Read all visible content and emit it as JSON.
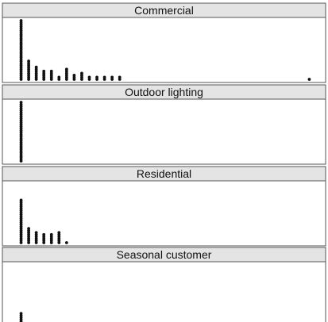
{
  "chart_data": {
    "type": "dotplot",
    "panels": [
      {
        "title": "Commercial",
        "columns": [
          {
            "x": 1,
            "count": 30
          },
          {
            "x": 2,
            "count": 10
          },
          {
            "x": 3,
            "count": 7
          },
          {
            "x": 4,
            "count": 5
          },
          {
            "x": 5,
            "count": 5
          },
          {
            "x": 6,
            "count": 2
          },
          {
            "x": 7,
            "count": 6
          },
          {
            "x": 8,
            "count": 3
          },
          {
            "x": 9,
            "count": 4
          },
          {
            "x": 10,
            "count": 2
          },
          {
            "x": 11,
            "count": 2
          },
          {
            "x": 12,
            "count": 2
          },
          {
            "x": 13,
            "count": 2
          },
          {
            "x": 14,
            "count": 2
          },
          {
            "x": 39,
            "count": 1
          }
        ]
      },
      {
        "title": "Outdoor lighting",
        "columns": [
          {
            "x": 1,
            "count": 30
          }
        ]
      },
      {
        "title": "Residential",
        "columns": [
          {
            "x": 1,
            "count": 22
          },
          {
            "x": 2,
            "count": 8
          },
          {
            "x": 3,
            "count": 6
          },
          {
            "x": 4,
            "count": 5
          },
          {
            "x": 5,
            "count": 5
          },
          {
            "x": 6,
            "count": 6
          },
          {
            "x": 7,
            "count": 1
          }
        ]
      },
      {
        "title": "Seasonal customer",
        "columns": [
          {
            "x": 1,
            "count": 6
          }
        ]
      }
    ],
    "x_range": [
      0,
      40
    ],
    "grid": false
  }
}
